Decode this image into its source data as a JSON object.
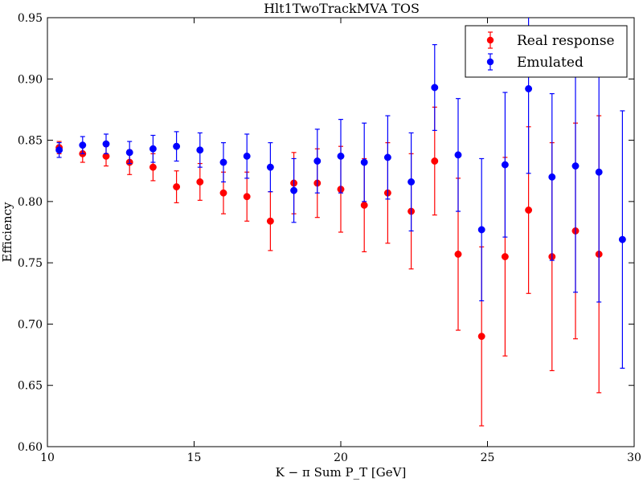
{
  "chart_data": {
    "type": "scatter",
    "title": "Hlt1TwoTrackMVA TOS",
    "xlabel": "K − π Sum P_T [GeV]",
    "ylabel": "Efficiency",
    "xlim": [
      10,
      30
    ],
    "ylim": [
      0.6,
      0.95
    ],
    "xticks": [
      10,
      15,
      20,
      25,
      30
    ],
    "yticks": [
      0.6,
      0.65,
      0.7,
      0.75,
      0.8,
      0.85,
      0.9,
      0.95
    ],
    "ytick_labels": [
      "0.60",
      "0.65",
      "0.70",
      "0.75",
      "0.80",
      "0.85",
      "0.90",
      "0.95"
    ],
    "grid": false,
    "legend": "top-right",
    "series": [
      {
        "name": "Real response",
        "color": "#ff0000",
        "x": [
          10.4,
          11.2,
          12.0,
          12.8,
          13.6,
          14.4,
          15.2,
          16.0,
          16.8,
          17.6,
          18.4,
          19.2,
          20.0,
          20.8,
          21.6,
          22.4,
          23.2,
          24.0,
          24.8,
          25.6,
          26.4,
          27.2,
          28.0,
          28.8
        ],
        "y": [
          0.844,
          0.839,
          0.837,
          0.832,
          0.828,
          0.812,
          0.816,
          0.807,
          0.804,
          0.784,
          0.815,
          0.815,
          0.81,
          0.797,
          0.807,
          0.792,
          0.833,
          0.757,
          0.69,
          0.755,
          0.793,
          0.755,
          0.776,
          0.757
        ],
        "err": [
          0.005,
          0.007,
          0.008,
          0.01,
          0.011,
          0.013,
          0.015,
          0.017,
          0.02,
          0.024,
          0.025,
          0.028,
          0.035,
          0.038,
          0.041,
          0.047,
          0.044,
          0.062,
          0.073,
          0.081,
          0.068,
          0.093,
          0.088,
          0.113
        ]
      },
      {
        "name": "Emulated",
        "color": "#0000ff",
        "x": [
          10.4,
          11.2,
          12.0,
          12.8,
          13.6,
          14.4,
          15.2,
          16.0,
          16.8,
          17.6,
          18.4,
          19.2,
          20.0,
          20.8,
          21.6,
          22.4,
          23.2,
          24.0,
          24.8,
          25.6,
          26.4,
          27.2,
          28.0,
          28.8,
          29.6
        ],
        "y": [
          0.842,
          0.846,
          0.847,
          0.84,
          0.843,
          0.845,
          0.842,
          0.832,
          0.837,
          0.828,
          0.809,
          0.833,
          0.837,
          0.832,
          0.836,
          0.816,
          0.893,
          0.838,
          0.777,
          0.83,
          0.892,
          0.82,
          0.829,
          0.824,
          0.769
        ],
        "err": [
          0.006,
          0.007,
          0.008,
          0.009,
          0.011,
          0.012,
          0.014,
          0.016,
          0.018,
          0.02,
          0.026,
          0.026,
          0.03,
          0.032,
          0.034,
          0.04,
          0.035,
          0.046,
          0.058,
          0.059,
          0.069,
          0.068,
          0.103,
          0.106,
          0.105
        ]
      }
    ]
  }
}
